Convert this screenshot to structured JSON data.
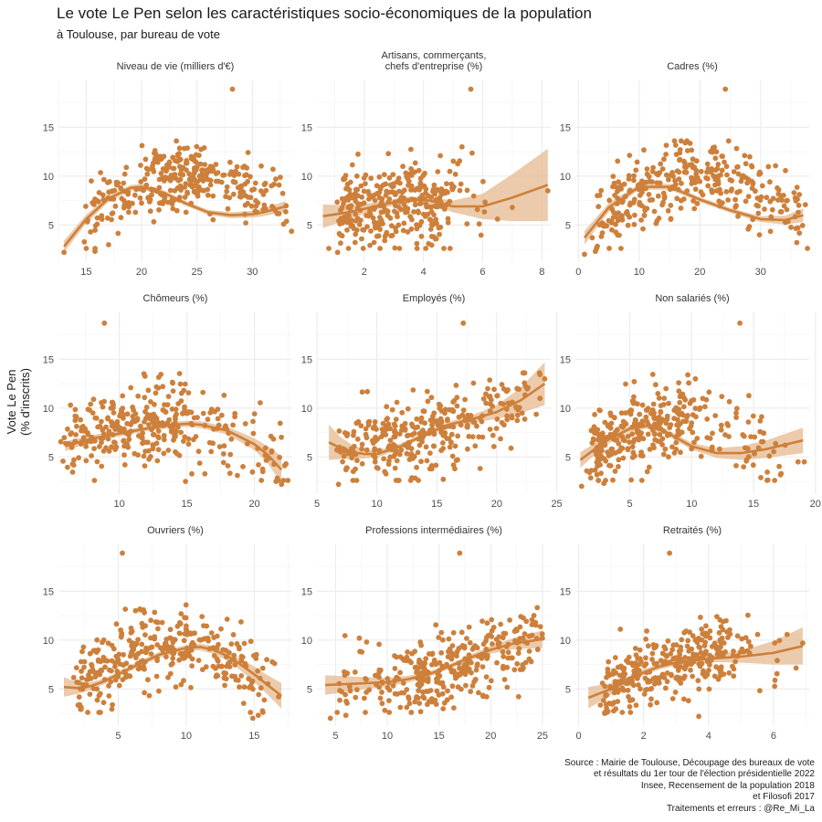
{
  "title": "Le vote Le Pen selon les caractéristiques socio-économiques de la population",
  "subtitle": "à Toulouse, par bureau de vote",
  "ylabel_lines": [
    "Vote Le Pen",
    "(% d'inscrits)"
  ],
  "caption_lines": [
    "Source : Mairie de Toulouse, Découpage des bureaux de vote",
    "et résultats du 1er tour de l'élection présidentielle 2022",
    "Insee, Recensement de la population 2018",
    "et Filosofi 2017",
    "Traitements et erreurs : @Re_Mi_La"
  ],
  "colors": {
    "point": "#cd803b",
    "ribbon": "#e4b98f",
    "grid_major": "#ebebeb",
    "grid_minor": "#f5f5f5",
    "strip_text": "#333333",
    "tick_text": "#4d4d4d"
  },
  "chart_data": [
    {
      "type": "scatter",
      "title_lines": [
        "Niveau de vie (milliers d'€)"
      ],
      "xlim": [
        12.5,
        33.6
      ],
      "ylim": [
        1.2,
        19.8
      ],
      "xticks": [
        15,
        20,
        25,
        30
      ],
      "yticks": [
        5,
        10,
        15
      ],
      "smooth": {
        "x": [
          13,
          15,
          17,
          19,
          20,
          22,
          24,
          26,
          28,
          30,
          31,
          33
        ],
        "y": [
          2.8,
          5.6,
          7.7,
          8.8,
          8.9,
          8.3,
          7.2,
          6.3,
          6.0,
          6.1,
          6.3,
          6.9
        ],
        "se": [
          0.6,
          0.45,
          0.35,
          0.3,
          0.3,
          0.25,
          0.25,
          0.25,
          0.3,
          0.35,
          0.4,
          0.55
        ]
      },
      "outliers": [
        [
          28.2,
          18.9
        ],
        [
          13.0,
          2.2
        ],
        [
          15.8,
          2.3
        ]
      ],
      "trend": {
        "kind": "quad",
        "p": [
          [
            13,
            3.0
          ],
          [
            20,
            9.0
          ],
          [
            33,
            6.8
          ]
        ]
      },
      "xdist": [
        [
          15,
          20,
          0.22
        ],
        [
          20,
          26,
          0.5
        ],
        [
          26,
          33,
          0.28
        ]
      ],
      "sd": 1.8,
      "n": 330,
      "seed": 11
    },
    {
      "type": "scatter",
      "title_lines": [
        "Artisans, commerçants,",
        "chefs d'entreprise (%)"
      ],
      "xlim": [
        0.4,
        8.3
      ],
      "ylim": [
        1.2,
        19.8
      ],
      "xticks": [
        2,
        4,
        6,
        8
      ],
      "yticks": [
        5,
        10,
        15
      ],
      "smooth": {
        "x": [
          0.6,
          1.5,
          2.5,
          3.5,
          4.2,
          5,
          6,
          7,
          8.2
        ],
        "y": [
          5.9,
          6.3,
          7.0,
          7.6,
          7.5,
          6.9,
          6.9,
          7.8,
          9.1
        ],
        "se": [
          1.2,
          0.7,
          0.35,
          0.3,
          0.35,
          0.6,
          1.3,
          2.4,
          3.7
        ]
      },
      "outliers": [
        [
          5.6,
          18.9
        ],
        [
          0.8,
          2.6
        ],
        [
          1.1,
          2.2
        ],
        [
          8.2,
          8.5
        ],
        [
          6.5,
          5.6
        ],
        [
          7.0,
          6.8
        ],
        [
          5.3,
          13.0
        ]
      ],
      "trend": {
        "kind": "quad",
        "p": [
          [
            0.8,
            6.0
          ],
          [
            3.5,
            7.4
          ],
          [
            6.0,
            7.2
          ]
        ]
      },
      "xdist": [
        [
          1.2,
          3.0,
          0.5
        ],
        [
          3.0,
          4.8,
          0.42
        ],
        [
          4.8,
          6.2,
          0.08
        ]
      ],
      "sd": 2.2,
      "n": 330,
      "seed": 23
    },
    {
      "type": "scatter",
      "title_lines": [
        "Cadres (%)"
      ],
      "xlim": [
        -0.5,
        38
      ],
      "ylim": [
        1.2,
        19.8
      ],
      "xticks": [
        0,
        10,
        20,
        30
      ],
      "yticks": [
        5,
        10,
        15
      ],
      "smooth": {
        "x": [
          1,
          5,
          10,
          15,
          20,
          25,
          30,
          34,
          37
        ],
        "y": [
          3.7,
          6.8,
          8.9,
          8.9,
          7.6,
          6.5,
          5.6,
          5.5,
          6.0
        ],
        "se": [
          0.7,
          0.45,
          0.3,
          0.3,
          0.25,
          0.25,
          0.3,
          0.45,
          0.7
        ]
      },
      "outliers": [
        [
          24.2,
          18.9
        ],
        [
          1.0,
          2.0
        ],
        [
          2.8,
          2.3
        ],
        [
          7.0,
          2.6
        ]
      ],
      "trend": {
        "kind": "quad",
        "p": [
          [
            2,
            4.5
          ],
          [
            12,
            9.0
          ],
          [
            36,
            5.8
          ]
        ]
      },
      "xdist": [
        [
          3,
          12,
          0.3
        ],
        [
          12,
          26,
          0.48
        ],
        [
          26,
          37,
          0.22
        ]
      ],
      "sd": 1.9,
      "n": 330,
      "seed": 37
    },
    {
      "type": "scatter",
      "title_lines": [
        "Chômeurs (%)"
      ],
      "xlim": [
        5.5,
        22.8
      ],
      "ylim": [
        1.2,
        19.8
      ],
      "xticks": [
        10,
        15,
        20
      ],
      "yticks": [
        5,
        10,
        15
      ],
      "smooth": {
        "x": [
          6,
          8,
          10,
          12,
          14,
          15,
          16,
          18,
          20,
          21,
          22
        ],
        "y": [
          6.1,
          6.9,
          7.4,
          7.9,
          8.3,
          8.4,
          8.3,
          7.7,
          6.3,
          5.2,
          3.7
        ],
        "se": [
          0.5,
          0.35,
          0.3,
          0.25,
          0.3,
          0.3,
          0.35,
          0.4,
          0.6,
          0.9,
          1.4
        ]
      },
      "outliers": [
        [
          8.9,
          18.7
        ],
        [
          14.9,
          2.5
        ],
        [
          22.0,
          2.2
        ],
        [
          21.6,
          2.5
        ]
      ],
      "trend": {
        "kind": "quad",
        "p": [
          [
            6,
            6.1
          ],
          [
            15,
            8.4
          ],
          [
            22,
            3.8
          ]
        ]
      },
      "xdist": [
        [
          6,
          10,
          0.35
        ],
        [
          10,
          15,
          0.45
        ],
        [
          15,
          22,
          0.2
        ]
      ],
      "sd": 2.0,
      "n": 330,
      "seed": 41
    },
    {
      "type": "scatter",
      "title_lines": [
        "Employés (%)"
      ],
      "xlim": [
        5,
        24.5
      ],
      "ylim": [
        1.2,
        19.8
      ],
      "xticks": [
        5,
        10,
        15,
        20,
        25
      ],
      "yticks": [
        5,
        10,
        15
      ],
      "smooth": {
        "x": [
          6,
          7,
          8,
          9,
          10,
          12,
          14,
          16,
          18,
          20,
          22,
          24
        ],
        "y": [
          6.5,
          5.9,
          5.5,
          5.3,
          5.3,
          6.1,
          7.3,
          8.3,
          8.9,
          9.6,
          10.8,
          12.5
        ],
        "se": [
          1.8,
          1.1,
          0.7,
          0.45,
          0.35,
          0.3,
          0.25,
          0.3,
          0.4,
          0.7,
          1.3,
          2.2
        ]
      },
      "outliers": [
        [
          17.2,
          18.7
        ],
        [
          6.8,
          2.2
        ],
        [
          8.0,
          2.6
        ],
        [
          24.0,
          13.0
        ],
        [
          23.6,
          11.0
        ]
      ],
      "trend": {
        "kind": "quad",
        "p": [
          [
            7,
            6.0
          ],
          [
            14,
            7.3
          ],
          [
            23,
            11.6
          ]
        ]
      },
      "xdist": [
        [
          7,
          11,
          0.28
        ],
        [
          11,
          17,
          0.5
        ],
        [
          17,
          23,
          0.22
        ]
      ],
      "sd": 2.0,
      "n": 330,
      "seed": 53
    },
    {
      "type": "scatter",
      "title_lines": [
        "Non salariés (%)"
      ],
      "xlim": [
        0.6,
        19.5
      ],
      "ylim": [
        1.2,
        19.8
      ],
      "xticks": [
        5,
        10,
        15,
        20
      ],
      "yticks": [
        5,
        10,
        15
      ],
      "smooth": {
        "x": [
          1,
          3,
          5,
          6.5,
          8,
          10,
          12,
          14,
          16,
          19
        ],
        "y": [
          4.7,
          6.6,
          7.9,
          8.2,
          7.5,
          6.1,
          5.4,
          5.4,
          5.8,
          6.7
        ],
        "se": [
          0.8,
          0.45,
          0.3,
          0.3,
          0.3,
          0.35,
          0.5,
          0.7,
          0.9,
          1.3
        ]
      },
      "outliers": [
        [
          13.9,
          18.7
        ],
        [
          1.1,
          2.0
        ],
        [
          2.9,
          2.3
        ],
        [
          18.6,
          4.5
        ],
        [
          19.1,
          4.5
        ],
        [
          10.3,
          13.0
        ]
      ],
      "trend": {
        "kind": "quad",
        "p": [
          [
            2,
            5.5
          ],
          [
            6.5,
            8.2
          ],
          [
            16,
            5.8
          ]
        ]
      },
      "xdist": [
        [
          2,
          5,
          0.28
        ],
        [
          5,
          10,
          0.52
        ],
        [
          10,
          17,
          0.2
        ]
      ],
      "sd": 1.9,
      "n": 330,
      "seed": 67
    },
    {
      "type": "scatter",
      "title_lines": [
        "Ouvriers (%)"
      ],
      "xlim": [
        0.6,
        17.8
      ],
      "ylim": [
        1.2,
        19.8
      ],
      "xticks": [
        5,
        10,
        15
      ],
      "yticks": [
        5,
        10,
        15
      ],
      "smooth": {
        "x": [
          1,
          2,
          3,
          4,
          6,
          8,
          10,
          11,
          12,
          13,
          14,
          15,
          16,
          17
        ],
        "y": [
          5.2,
          5.1,
          5.3,
          5.8,
          7.2,
          8.5,
          9.2,
          9.3,
          9.0,
          8.4,
          7.5,
          6.5,
          5.4,
          4.3
        ],
        "se": [
          1.0,
          0.6,
          0.4,
          0.3,
          0.3,
          0.3,
          0.3,
          0.35,
          0.4,
          0.5,
          0.6,
          0.8,
          1.0,
          1.3
        ]
      },
      "outliers": [
        [
          5.3,
          18.9
        ],
        [
          15.3,
          2.3
        ],
        [
          14.9,
          2.0
        ],
        [
          16.8,
          4.2
        ],
        [
          16.5,
          7.6
        ]
      ],
      "trend": {
        "kind": "quad",
        "p": [
          [
            2,
            5.1
          ],
          [
            10,
            9.2
          ],
          [
            16,
            5.4
          ]
        ]
      },
      "xdist": [
        [
          2,
          6,
          0.38
        ],
        [
          6,
          11,
          0.4
        ],
        [
          11,
          16,
          0.22
        ]
      ],
      "sd": 1.9,
      "n": 330,
      "seed": 71
    },
    {
      "type": "scatter",
      "title_lines": [
        "Professions intermédiaires (%)"
      ],
      "xlim": [
        3.2,
        25.8
      ],
      "ylim": [
        1.2,
        19.8
      ],
      "xticks": [
        5,
        10,
        15,
        20,
        25
      ],
      "yticks": [
        5,
        10,
        15
      ],
      "smooth": {
        "x": [
          4,
          6,
          8,
          10,
          12,
          14,
          16,
          18,
          20,
          22,
          25
        ],
        "y": [
          5.4,
          5.5,
          5.6,
          5.7,
          6.0,
          6.5,
          7.3,
          8.2,
          9.0,
          9.6,
          10.1
        ],
        "se": [
          1.0,
          0.8,
          0.6,
          0.45,
          0.35,
          0.3,
          0.25,
          0.3,
          0.4,
          0.55,
          0.9
        ]
      },
      "outliers": [
        [
          17.0,
          18.9
        ],
        [
          4.5,
          2.0
        ],
        [
          6.0,
          2.3
        ],
        [
          7.3,
          10.2
        ],
        [
          8.0,
          9.8
        ],
        [
          25.0,
          10.2
        ]
      ],
      "trend": {
        "kind": "quad",
        "p": [
          [
            6,
            5.5
          ],
          [
            14,
            6.5
          ],
          [
            24,
            10.0
          ]
        ]
      },
      "xdist": [
        [
          5,
          12,
          0.14
        ],
        [
          12,
          19,
          0.6
        ],
        [
          19,
          25,
          0.26
        ]
      ],
      "sd": 2.0,
      "n": 330,
      "seed": 83
    },
    {
      "type": "scatter",
      "title_lines": [
        "Retraités (%)"
      ],
      "xlim": [
        -0.1,
        7.1
      ],
      "ylim": [
        1.2,
        19.8
      ],
      "xticks": [
        0,
        2,
        4,
        6
      ],
      "yticks": [
        5,
        10,
        15
      ],
      "smooth": {
        "x": [
          0.3,
          1,
          1.5,
          2,
          2.5,
          3,
          4,
          5,
          6,
          6.9
        ],
        "y": [
          4.1,
          5.0,
          5.8,
          6.7,
          7.3,
          7.7,
          8.1,
          8.3,
          8.7,
          9.4
        ],
        "se": [
          1.1,
          0.6,
          0.35,
          0.3,
          0.3,
          0.3,
          0.35,
          0.6,
          1.2,
          1.9
        ]
      },
      "outliers": [
        [
          2.8,
          18.9
        ],
        [
          6.9,
          9.7
        ],
        [
          3.7,
          2.2
        ],
        [
          0.8,
          2.5
        ]
      ],
      "trend": {
        "kind": "quad",
        "p": [
          [
            0.7,
            4.6
          ],
          [
            2.8,
            7.6
          ],
          [
            6.5,
            9.0
          ]
        ]
      },
      "xdist": [
        [
          0.8,
          2.5,
          0.45
        ],
        [
          2.5,
          4.5,
          0.47
        ],
        [
          4.5,
          6.5,
          0.08
        ]
      ],
      "sd": 1.8,
      "n": 330,
      "seed": 97
    }
  ]
}
